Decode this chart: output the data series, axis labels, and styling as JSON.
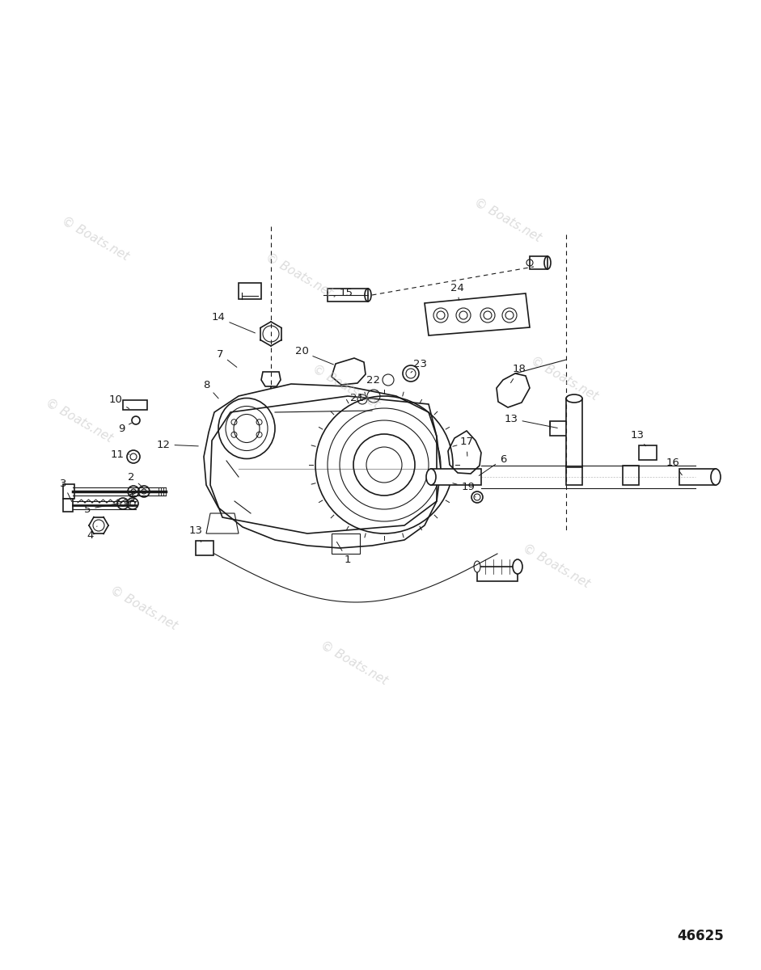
{
  "background_color": "#ffffff",
  "watermark_text": "© Boats.net",
  "part_number_id": "46625",
  "color_main": "#1a1a1a"
}
